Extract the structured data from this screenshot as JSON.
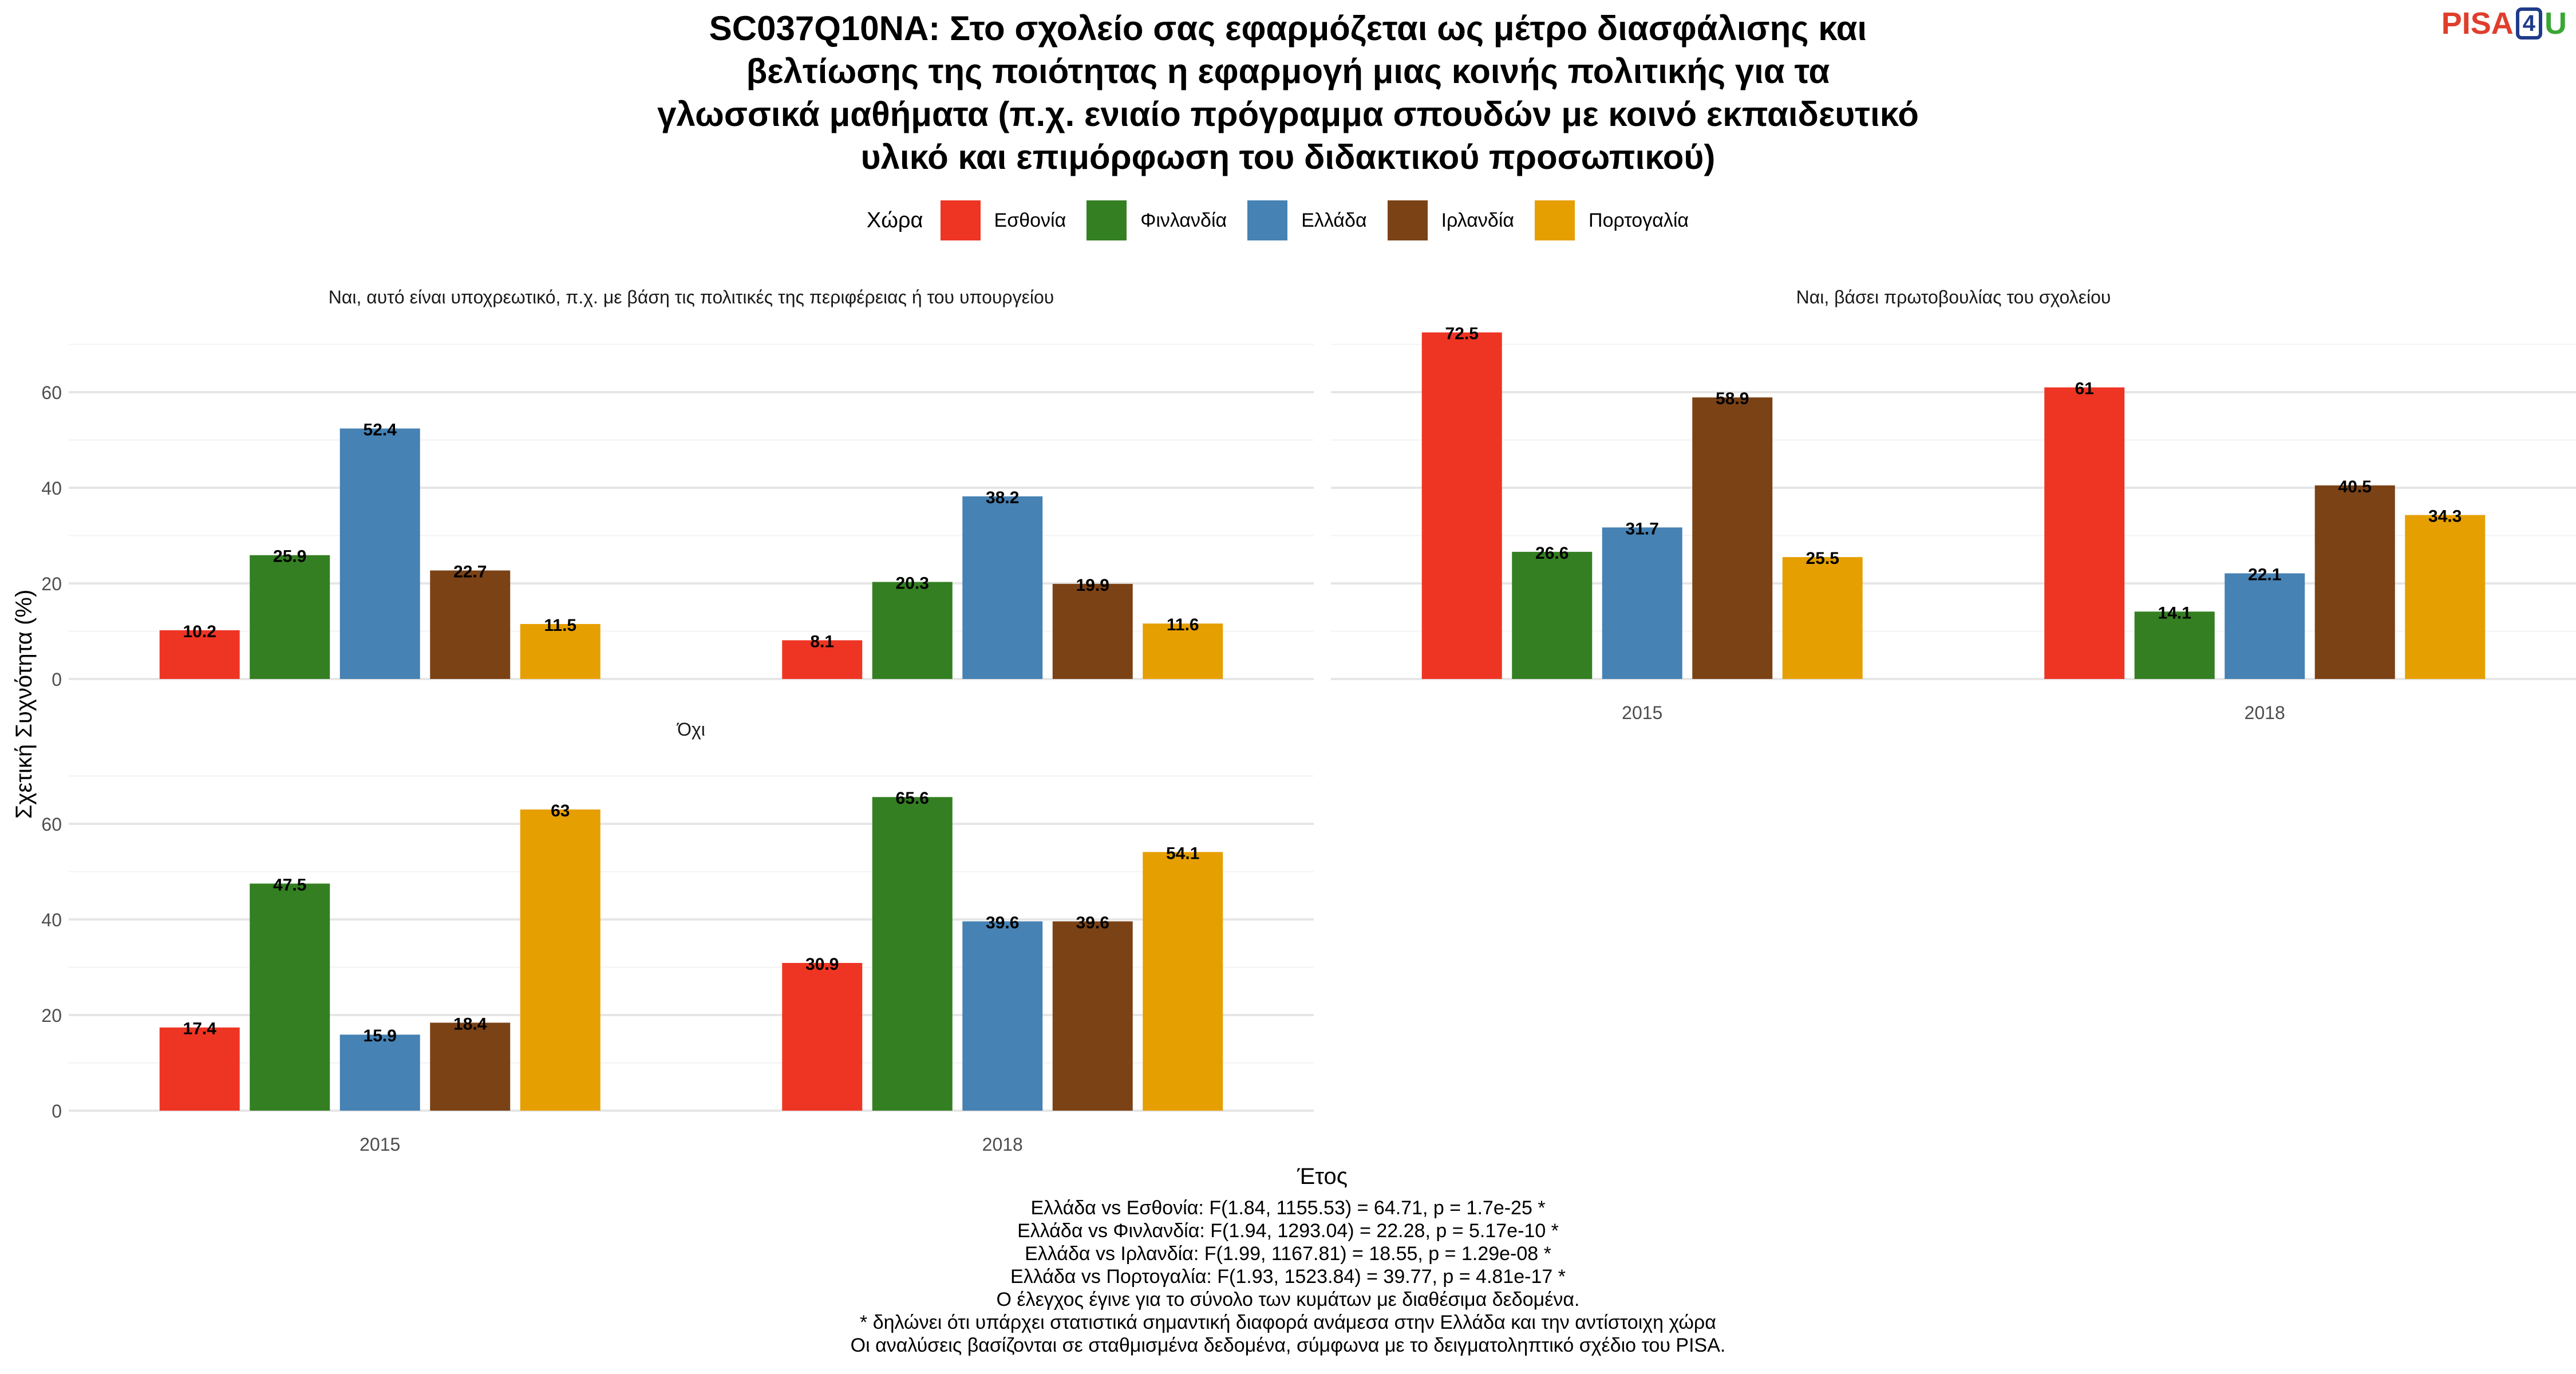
{
  "title_lines": [
    "SC037Q10NA: Στο σχολείο σας εφαρμόζεται ως μέτρο διασφάλισης και",
    "βελτίωσης της ποιότητας η εφαρμογή μιας κοινής πολιτικής για τα",
    "γλωσσικά μαθήματα (π.χ. ενιαίο πρόγραμμα σπουδών με κοινό εκπαιδευτικό",
    "υλικό και επιμόρφωση του διδακτικού προσωπικού)"
  ],
  "logo": {
    "pisa": "PISA",
    "four": "4",
    "u": "U"
  },
  "legend": {
    "title": "Χώρα",
    "items": [
      {
        "label": "Εσθονία",
        "color": "#ee3524"
      },
      {
        "label": "Φινλανδία",
        "color": "#347f22"
      },
      {
        "label": "Ελλάδα",
        "color": "#4682b4"
      },
      {
        "label": "Ιρλανδία",
        "color": "#7b4216"
      },
      {
        "label": "Πορτογαλία",
        "color": "#e69f00"
      }
    ]
  },
  "chart_data": {
    "type": "bar",
    "xlabel": "Έτος",
    "ylabel": "Σχετική Συχνότητα (%)",
    "categories": [
      "2015",
      "2018"
    ],
    "ylim": [
      0,
      72.5
    ],
    "yticks": [
      0,
      20,
      40,
      60
    ],
    "grid": true,
    "legend_position": "top",
    "panels": [
      {
        "title": "Ναι, αυτό είναι υποχρεωτικό, π.χ. με βάση τις πολιτικές της περιφέρειας ή του υπουργείου",
        "series": [
          {
            "name": "Εσθονία",
            "values": [
              10.2,
              8.1
            ]
          },
          {
            "name": "Φινλανδία",
            "values": [
              25.9,
              20.3
            ]
          },
          {
            "name": "Ελλάδα",
            "values": [
              52.4,
              38.2
            ]
          },
          {
            "name": "Ιρλανδία",
            "values": [
              22.7,
              19.9
            ]
          },
          {
            "name": "Πορτογαλία",
            "values": [
              11.5,
              11.6
            ]
          }
        ]
      },
      {
        "title": "Ναι, βάσει πρωτοβουλίας του σχολείου",
        "series": [
          {
            "name": "Εσθονία",
            "values": [
              72.5,
              61
            ]
          },
          {
            "name": "Φινλανδία",
            "values": [
              26.6,
              14.1
            ]
          },
          {
            "name": "Ελλάδα",
            "values": [
              31.7,
              22.1
            ]
          },
          {
            "name": "Ιρλανδία",
            "values": [
              58.9,
              40.5
            ]
          },
          {
            "name": "Πορτογαλία",
            "values": [
              25.5,
              34.3
            ]
          }
        ]
      },
      {
        "title": "Όχι",
        "series": [
          {
            "name": "Εσθονία",
            "values": [
              17.4,
              30.9
            ]
          },
          {
            "name": "Φινλανδία",
            "values": [
              47.5,
              65.6
            ]
          },
          {
            "name": "Ελλάδα",
            "values": [
              15.9,
              39.6
            ]
          },
          {
            "name": "Ιρλανδία",
            "values": [
              18.4,
              39.6
            ]
          },
          {
            "name": "Πορτογαλία",
            "values": [
              63,
              54.1
            ]
          }
        ]
      }
    ]
  },
  "footnotes": [
    "Ελλάδα vs Εσθονία: F(1.84, 1155.53) = 64.71, p = 1.7e-25 *",
    "Ελλάδα vs Φινλανδία: F(1.94, 1293.04) = 22.28, p = 5.17e-10 *",
    "Ελλάδα vs Ιρλανδία: F(1.99, 1167.81) = 18.55, p = 1.29e-08 *",
    "Ελλάδα vs Πορτογαλία: F(1.93, 1523.84) = 39.77, p = 4.81e-17 *",
    "Ο έλεγχος έγινε για το σύνολο των κυμάτων με διαθέσιμα δεδομένα.",
    "* δηλώνει ότι υπάρχει στατιστικά σημαντική διαφορά ανάμεσα στην Ελλάδα και την αντίστοιχη χώρα",
    "Οι αναλύσεις βασίζονται σε σταθμισμένα δεδομένα, σύμφωνα με το δειγματοληπτικό σχέδιο του PISA."
  ]
}
